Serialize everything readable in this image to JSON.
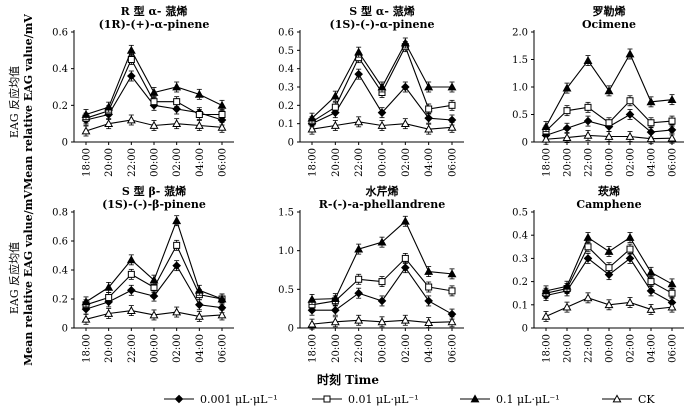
{
  "figure": {
    "y_label_cn": "EAG 反应均值",
    "y_label_en": "Mean relative EAG value/mV",
    "x_label": "时刻 Time"
  },
  "legend": [
    {
      "label": "0.001 μL·μL⁻¹",
      "marker": "diamond-filled"
    },
    {
      "label": "0.01 μL·μL⁻¹",
      "marker": "square-open"
    },
    {
      "label": "0.1 μL·μL⁻¹",
      "marker": "triangle-filled"
    },
    {
      "label": "CK",
      "marker": "triangle-open"
    }
  ],
  "chart_data": [
    {
      "type": "line",
      "title_cn": "R 型 α- 蒎烯",
      "title_en": "(1R)-(+)-α-pinene",
      "categories": [
        "18:00",
        "20:00",
        "22:00",
        "00:00",
        "02:00",
        "04:00",
        "06:00"
      ],
      "ylim": [
        0,
        0.6
      ],
      "yticks": [
        "0",
        "0.2",
        "0.4",
        "0.6"
      ],
      "series": [
        {
          "name": "0.001 μL·μL⁻¹",
          "values": [
            0.12,
            0.15,
            0.36,
            0.2,
            0.18,
            0.16,
            0.12
          ]
        },
        {
          "name": "0.01 μL·μL⁻¹",
          "values": [
            0.13,
            0.17,
            0.45,
            0.22,
            0.22,
            0.15,
            0.15
          ]
        },
        {
          "name": "0.1 μL·μL⁻¹",
          "values": [
            0.15,
            0.19,
            0.5,
            0.27,
            0.3,
            0.26,
            0.2
          ]
        },
        {
          "name": "CK",
          "values": [
            0.06,
            0.1,
            0.12,
            0.09,
            0.1,
            0.09,
            0.08
          ]
        }
      ]
    },
    {
      "type": "line",
      "title_cn": "S 型 α- 蒎烯",
      "title_en": "(1S)-(-)-α-pinene",
      "categories": [
        "18:00",
        "20:00",
        "22:00",
        "00:00",
        "02:00",
        "04:00",
        "06:00"
      ],
      "ylim": [
        0,
        0.6
      ],
      "yticks": [
        "0",
        "0.1",
        "0.2",
        "0.3",
        "0.4",
        "0.5",
        "0.6"
      ],
      "series": [
        {
          "name": "0.001 μL·μL⁻¹",
          "values": [
            0.1,
            0.16,
            0.37,
            0.16,
            0.3,
            0.13,
            0.12
          ]
        },
        {
          "name": "0.01 μL·μL⁻¹",
          "values": [
            0.11,
            0.19,
            0.46,
            0.27,
            0.52,
            0.18,
            0.2
          ]
        },
        {
          "name": "0.1 μL·μL⁻¹",
          "values": [
            0.13,
            0.25,
            0.49,
            0.3,
            0.54,
            0.3,
            0.3
          ]
        },
        {
          "name": "CK",
          "values": [
            0.07,
            0.09,
            0.11,
            0.09,
            0.1,
            0.07,
            0.08
          ]
        }
      ]
    },
    {
      "type": "line",
      "title_cn": "罗勒烯",
      "title_en": "Ocimene",
      "categories": [
        "18:00",
        "20:00",
        "22:00",
        "00:00",
        "02:00",
        "04:00",
        "06:00"
      ],
      "ylim": [
        0,
        2.0
      ],
      "yticks": [
        "0",
        "0.5",
        "1.0",
        "1.5",
        "2.0"
      ],
      "series": [
        {
          "name": "0.001 μL·μL⁻¹",
          "values": [
            0.12,
            0.25,
            0.38,
            0.28,
            0.5,
            0.18,
            0.22
          ]
        },
        {
          "name": "0.01 μL·μL⁻¹",
          "values": [
            0.2,
            0.57,
            0.63,
            0.35,
            0.75,
            0.35,
            0.38
          ]
        },
        {
          "name": "0.1 μL·μL⁻¹",
          "values": [
            0.28,
            0.98,
            1.48,
            0.93,
            1.6,
            0.73,
            0.77
          ]
        },
        {
          "name": "CK",
          "values": [
            0.05,
            0.08,
            0.12,
            0.1,
            0.1,
            0.06,
            0.07
          ]
        }
      ]
    },
    {
      "type": "line",
      "title_cn": "S 型 β- 蒎烯",
      "title_en": "(1S)-(-)-β-pinene",
      "categories": [
        "18:00",
        "20:00",
        "22:00",
        "00:00",
        "02:00",
        "04:00",
        "06:00"
      ],
      "ylim": [
        0,
        0.8
      ],
      "yticks": [
        "0",
        "0.2",
        "0.4",
        "0.6",
        "0.8"
      ],
      "series": [
        {
          "name": "0.001 μL·μL⁻¹",
          "values": [
            0.13,
            0.18,
            0.26,
            0.22,
            0.43,
            0.16,
            0.14
          ]
        },
        {
          "name": "0.01 μL·μL⁻¹",
          "values": [
            0.16,
            0.21,
            0.37,
            0.28,
            0.57,
            0.23,
            0.2
          ]
        },
        {
          "name": "0.1 μL·μL⁻¹",
          "values": [
            0.18,
            0.28,
            0.47,
            0.33,
            0.74,
            0.26,
            0.2
          ]
        },
        {
          "name": "CK",
          "values": [
            0.06,
            0.1,
            0.12,
            0.09,
            0.11,
            0.08,
            0.09
          ]
        }
      ]
    },
    {
      "type": "line",
      "title_cn": "水芹烯",
      "title_en": "R-(-)-a-phellandrene",
      "categories": [
        "18:00",
        "20:00",
        "22:00",
        "00:00",
        "02:00",
        "04:00",
        "06:00"
      ],
      "ylim": [
        0,
        1.5
      ],
      "yticks": [
        "0",
        "0.5",
        "1.0",
        "1.5"
      ],
      "series": [
        {
          "name": "0.001 μL·μL⁻¹",
          "values": [
            0.23,
            0.23,
            0.45,
            0.35,
            0.78,
            0.35,
            0.18
          ]
        },
        {
          "name": "0.01 μL·μL⁻¹",
          "values": [
            0.3,
            0.35,
            0.63,
            0.6,
            0.9,
            0.53,
            0.48
          ]
        },
        {
          "name": "0.1 μL·μL⁻¹",
          "values": [
            0.37,
            0.38,
            1.02,
            1.11,
            1.38,
            0.73,
            0.7
          ]
        },
        {
          "name": "CK",
          "values": [
            0.05,
            0.08,
            0.1,
            0.08,
            0.1,
            0.07,
            0.08
          ]
        }
      ]
    },
    {
      "type": "line",
      "title_cn": "莰烯",
      "title_en": "Camphene",
      "categories": [
        "18:00",
        "20:00",
        "22:00",
        "00:00",
        "02:00",
        "04:00",
        "06:00"
      ],
      "ylim": [
        0,
        0.5
      ],
      "yticks": [
        "0",
        "0.1",
        "0.2",
        "0.3",
        "0.4",
        "0.5"
      ],
      "series": [
        {
          "name": "0.001 μL·μL⁻¹",
          "values": [
            0.14,
            0.16,
            0.3,
            0.23,
            0.3,
            0.16,
            0.11
          ]
        },
        {
          "name": "0.01 μL·μL⁻¹",
          "values": [
            0.15,
            0.17,
            0.35,
            0.26,
            0.34,
            0.2,
            0.15
          ]
        },
        {
          "name": "0.1 μL·μL⁻¹",
          "values": [
            0.16,
            0.18,
            0.39,
            0.33,
            0.39,
            0.24,
            0.19
          ]
        },
        {
          "name": "CK",
          "values": [
            0.05,
            0.09,
            0.13,
            0.1,
            0.11,
            0.08,
            0.09
          ]
        }
      ]
    }
  ]
}
